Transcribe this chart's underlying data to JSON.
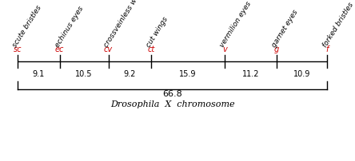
{
  "title": "Drosophila  X  chromosome",
  "markers": [
    "sc",
    "ec",
    "cv",
    "ct",
    "v",
    "g",
    "f"
  ],
  "marker_color": "#cc0000",
  "labels": [
    "scute bristles",
    "echinus eyes",
    "crossveinless wings",
    "cut wings",
    "vermilion eyes",
    "garnet eyes",
    "forked bristles"
  ],
  "distances": [
    9.1,
    10.5,
    9.2,
    15.9,
    11.2,
    10.9
  ],
  "total_distance": "66.8",
  "positions": [
    0,
    9.1,
    19.6,
    28.8,
    44.7,
    55.9,
    66.8
  ],
  "bg_color": "#ffffff",
  "line_color": "#000000",
  "label_color": "#000000",
  "fig_width": 4.44,
  "fig_height": 2.02,
  "dpi": 100
}
